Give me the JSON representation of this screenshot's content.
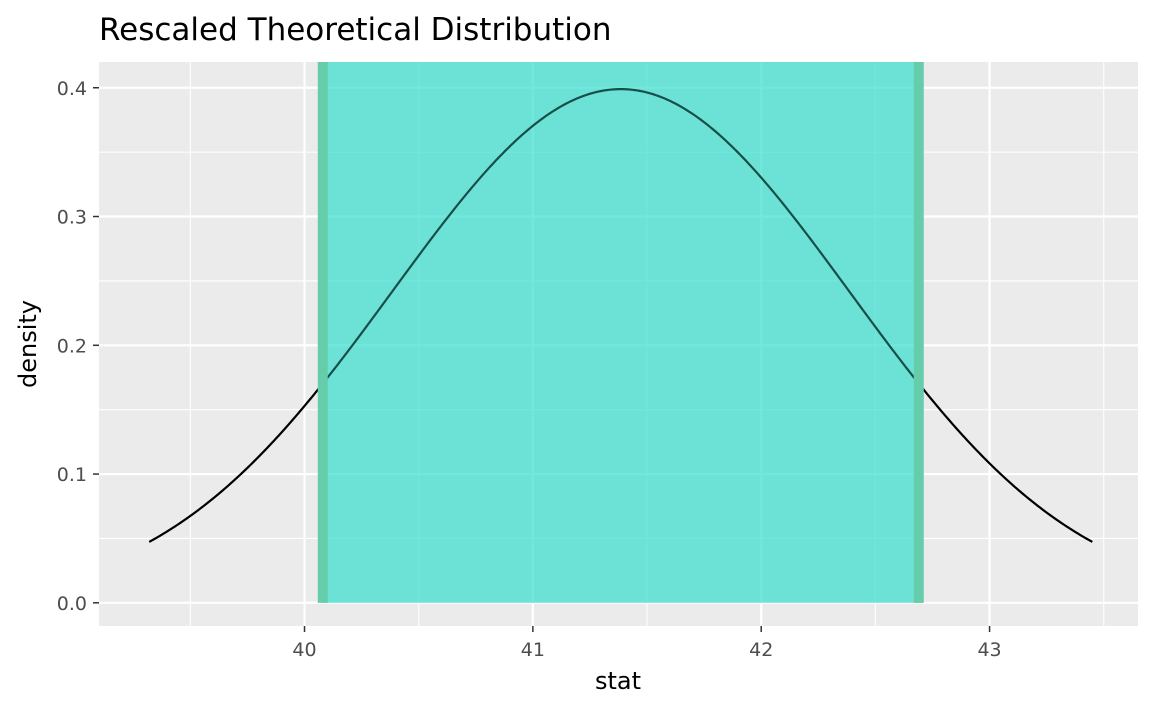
{
  "chart_data": {
    "type": "area",
    "title": "Rescaled Theoretical Distribution",
    "xlabel": "stat",
    "ylabel": "density",
    "xlim": [
      39.1,
      43.65
    ],
    "ylim": [
      -0.018,
      0.42
    ],
    "x_ticks": [
      40,
      41,
      42,
      43
    ],
    "y_ticks": [
      0.0,
      0.1,
      0.2,
      0.3,
      0.4
    ],
    "x_tick_labels": [
      "40",
      "41",
      "42",
      "43"
    ],
    "y_tick_labels": [
      "0.0",
      "0.1",
      "0.2",
      "0.3",
      "0.4"
    ],
    "grid": true,
    "legend": "none",
    "distribution": {
      "family": "normal",
      "mean": 41.385,
      "sd": 1.0,
      "x_range": [
        39.32,
        43.45
      ]
    },
    "shaded_interval": {
      "lower": 40.08,
      "upper": 42.69
    },
    "colors": {
      "panel_background": "#ebebeb",
      "grid": "#ffffff",
      "curve": "#000000",
      "shade_fill": "#40e0d0",
      "shade_opacity": 0.6,
      "interval_lines": "#66cdaa"
    }
  }
}
